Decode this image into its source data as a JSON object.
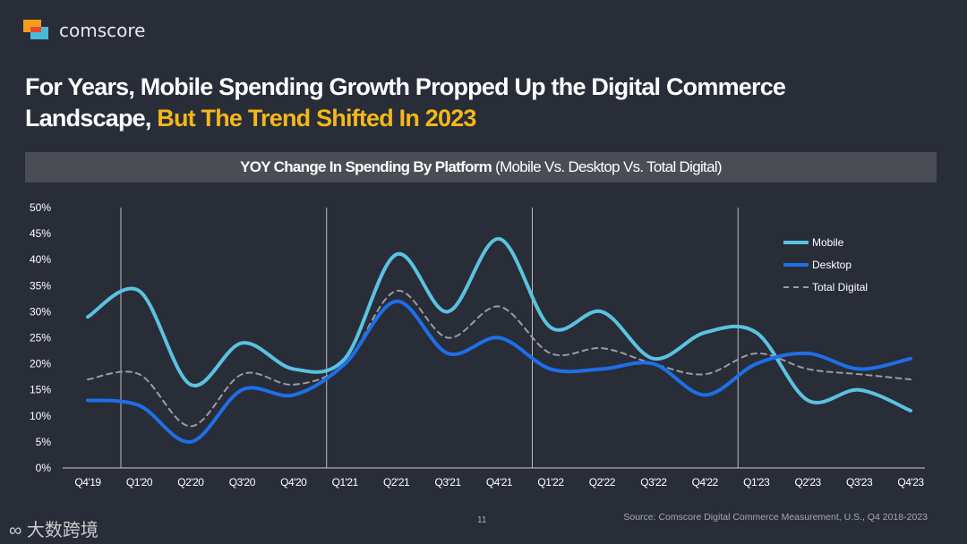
{
  "brand": {
    "name": "comscore"
  },
  "title": {
    "line1": "For Years, Mobile Spending Growth Propped Up the Digital Commerce",
    "line2_plain": "Landscape, ",
    "line2_highlight": "But The Trend Shifted In 2023"
  },
  "colors": {
    "bg": "#282d38",
    "mobile": "#5bc2e0",
    "desktop": "#1e6fe8",
    "total": "#9a9ca2",
    "highlight": "#f5b719"
  },
  "chart_data": {
    "type": "line",
    "title_bold": "YOY Change In Spending By Platform",
    "title_rest": " (Mobile Vs. Desktop Vs. Total Digital)",
    "categories": [
      "Q4'19",
      "Q1'20",
      "Q2'20",
      "Q3'20",
      "Q4'20",
      "Q1'21",
      "Q2'21",
      "Q3'21",
      "Q4'21",
      "Q1'22",
      "Q2'22",
      "Q3'22",
      "Q4'22",
      "Q1'23",
      "Q2'23",
      "Q3'23",
      "Q4'23"
    ],
    "yticks": [
      "0%",
      "5%",
      "10%",
      "15%",
      "20%",
      "25%",
      "30%",
      "35%",
      "40%",
      "45%",
      "50%"
    ],
    "ylim": [
      0,
      50
    ],
    "legend_position": "top-right",
    "series": [
      {
        "name": "Mobile",
        "values": [
          29,
          34,
          16,
          24,
          19,
          21,
          41,
          30,
          44,
          27,
          30,
          21,
          26,
          26,
          13,
          15,
          11
        ]
      },
      {
        "name": "Desktop",
        "values": [
          13,
          12,
          5,
          15,
          14,
          20,
          32,
          22,
          25,
          19,
          19,
          20,
          14,
          20,
          22,
          19,
          21
        ]
      },
      {
        "name": "Total Digital",
        "values": [
          17,
          18,
          8,
          18,
          16,
          20,
          34,
          25,
          31,
          22,
          23,
          20,
          18,
          22,
          19,
          18,
          17
        ]
      }
    ]
  },
  "footer": {
    "page": "11",
    "source": "Source: Comscore Digital Commerce Measurement, U.S., Q4 2018-2023",
    "watermark": "大数跨境"
  }
}
